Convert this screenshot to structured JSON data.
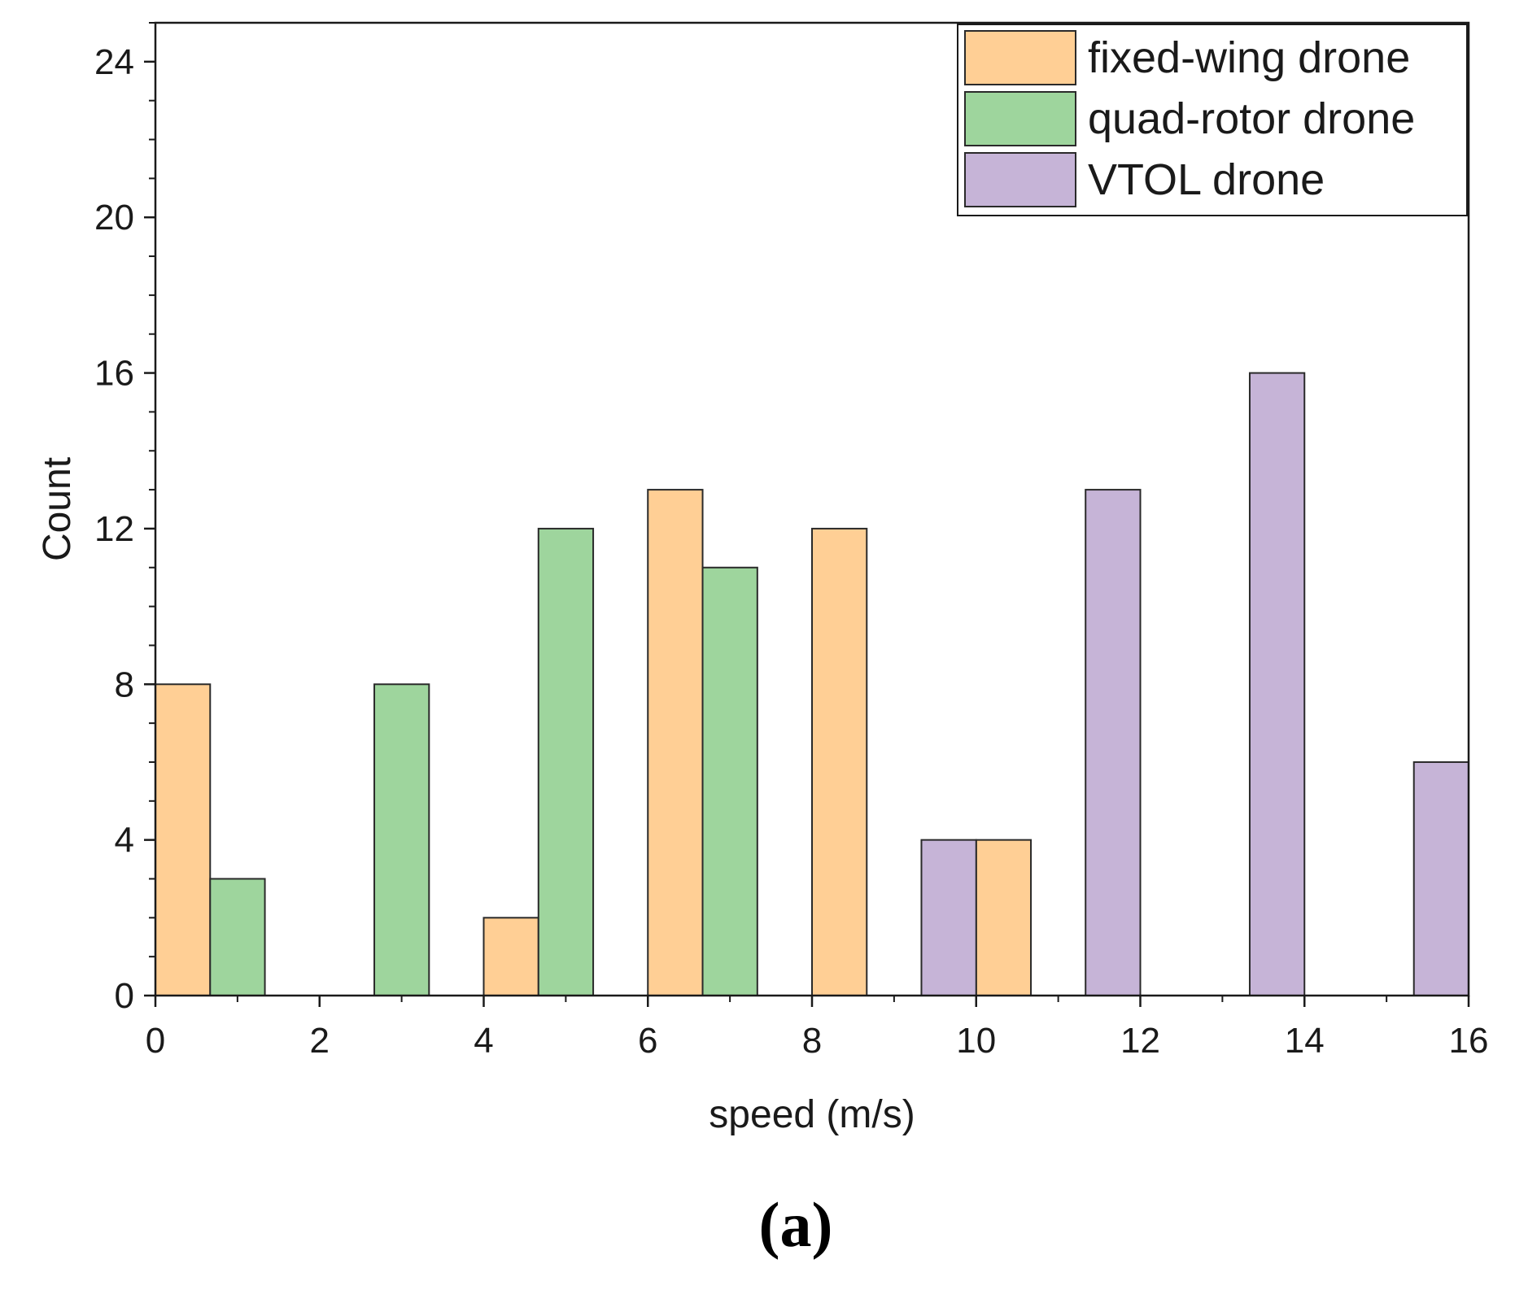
{
  "chart_data": {
    "type": "bar",
    "title": "",
    "xlabel": "speed (m/s)",
    "ylabel": "Count",
    "xlim": [
      0,
      16
    ],
    "ylim": [
      0,
      25
    ],
    "xticks": [
      0,
      2,
      4,
      6,
      8,
      10,
      12,
      14,
      16
    ],
    "yticks": [
      0,
      4,
      8,
      12,
      16,
      20,
      24
    ],
    "bin_width": 0.667,
    "grid": false,
    "legend_position": "top-right",
    "series": [
      {
        "name": "fixed-wing drone",
        "color": "#ffcf95",
        "bars": [
          {
            "start": 0.0,
            "value": 8
          },
          {
            "start": 4.0,
            "value": 2
          },
          {
            "start": 6.0,
            "value": 13
          },
          {
            "start": 8.0,
            "value": 12
          },
          {
            "start": 10.0,
            "value": 4
          }
        ]
      },
      {
        "name": "quad-rotor drone",
        "color": "#9ed59d",
        "bars": [
          {
            "start": 0.667,
            "value": 3
          },
          {
            "start": 2.667,
            "value": 8
          },
          {
            "start": 4.667,
            "value": 12
          },
          {
            "start": 6.667,
            "value": 11
          }
        ]
      },
      {
        "name": "VTOL drone",
        "color": "#c6b4d7",
        "bars": [
          {
            "start": 9.333,
            "value": 4
          },
          {
            "start": 11.333,
            "value": 13
          },
          {
            "start": 13.333,
            "value": 16
          },
          {
            "start": 15.333,
            "value": 6
          }
        ]
      }
    ]
  },
  "panel_label": "(a)"
}
